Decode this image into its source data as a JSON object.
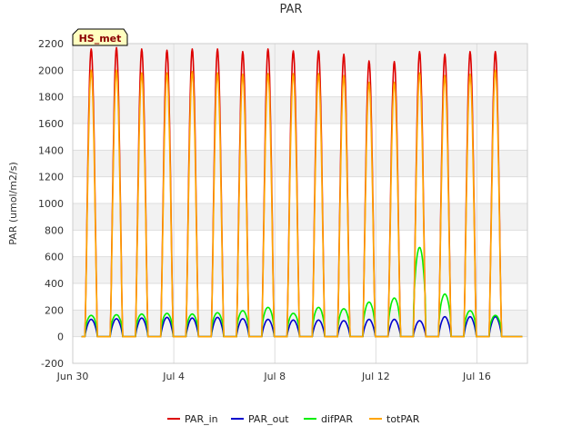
{
  "chart_data": {
    "type": "line",
    "title": "PAR",
    "xlabel": "",
    "ylabel": "PAR (umol/m2/s)",
    "ylim": [
      -200,
      2200
    ],
    "xlim_days": [
      0,
      18
    ],
    "yticks": [
      -200,
      0,
      200,
      400,
      600,
      800,
      1000,
      1200,
      1400,
      1600,
      1800,
      2000,
      2200
    ],
    "xticks": [
      {
        "day": 0,
        "label": "Jun 30"
      },
      {
        "day": 4,
        "label": "Jul 4"
      },
      {
        "day": 8,
        "label": "Jul 8"
      },
      {
        "day": 12,
        "label": "Jul 12"
      },
      {
        "day": 16,
        "label": "Jul 16"
      }
    ],
    "grid": true,
    "legend_position": "bottom",
    "badge": "HS_met",
    "series": [
      {
        "name": "PAR_in",
        "color": "#dd0000",
        "daily_peaks": [
          2160,
          2170,
          2160,
          2150,
          2160,
          2160,
          2140,
          2160,
          2145,
          2145,
          2120,
          2070,
          2065,
          2140,
          2120,
          2140,
          2140
        ]
      },
      {
        "name": "PAR_out",
        "color": "#0000cc",
        "daily_peaks": [
          130,
          135,
          140,
          145,
          140,
          145,
          135,
          130,
          125,
          125,
          120,
          130,
          130,
          120,
          150,
          150,
          150
        ]
      },
      {
        "name": "difPAR",
        "color": "#00ee00",
        "daily_peaks": [
          160,
          165,
          170,
          175,
          170,
          180,
          195,
          220,
          175,
          220,
          210,
          260,
          290,
          670,
          320,
          195,
          160
        ]
      },
      {
        "name": "totPAR",
        "color": "#ffa500",
        "daily_peaks": [
          2000,
          2000,
          1980,
          1980,
          1990,
          1980,
          1970,
          1975,
          1975,
          1975,
          1960,
          1910,
          1910,
          1980,
          1960,
          1970,
          2000
        ]
      }
    ]
  }
}
